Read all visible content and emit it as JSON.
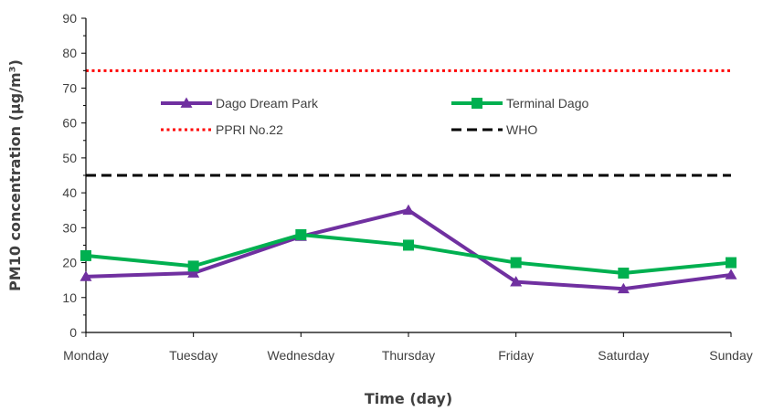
{
  "chart_data": {
    "type": "line",
    "title": "",
    "xlabel": "Time (day)",
    "ylabel": "PM10 concentration (µg/m³)",
    "categories": [
      "Monday",
      "Tuesday",
      "Wednesday",
      "Thursday",
      "Friday",
      "Saturday",
      "Sunday"
    ],
    "ylim": [
      0,
      90
    ],
    "yticks": [
      0,
      10,
      20,
      30,
      40,
      50,
      60,
      70,
      80,
      90
    ],
    "grid": false,
    "legend_position": "top",
    "series": [
      {
        "name": "Dago Dream Park",
        "values": [
          16,
          17,
          27.5,
          35,
          14.5,
          12.5,
          16.5
        ],
        "color": "#7030A0",
        "marker": "triangle",
        "line_style": "solid"
      },
      {
        "name": "Terminal Dago",
        "values": [
          22,
          19,
          28,
          25,
          20,
          17,
          20
        ],
        "color": "#00B050",
        "marker": "square",
        "line_style": "solid"
      }
    ],
    "reference_lines": [
      {
        "name": "PPRI No.22",
        "value": 75,
        "color": "#FF0000",
        "line_style": "dotted"
      },
      {
        "name": "WHO",
        "value": 45,
        "color": "#000000",
        "line_style": "dashed"
      }
    ]
  }
}
